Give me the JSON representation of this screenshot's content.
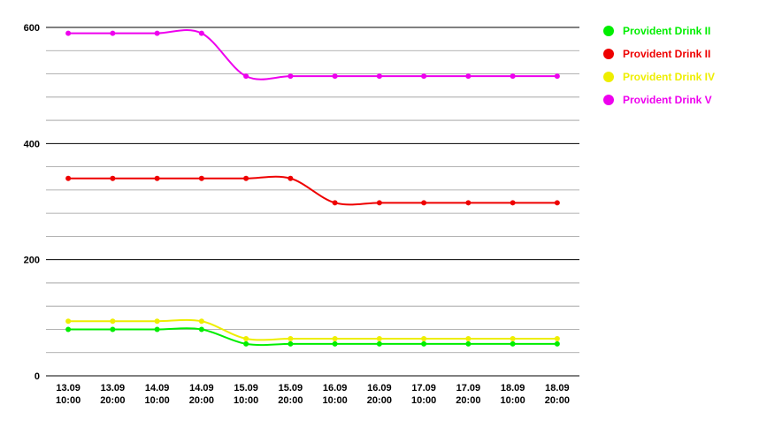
{
  "chart_data": {
    "type": "line",
    "categories": [
      [
        "13.09",
        "10:00"
      ],
      [
        "13.09",
        "20:00"
      ],
      [
        "14.09",
        "10:00"
      ],
      [
        "14.09",
        "20:00"
      ],
      [
        "15.09",
        "10:00"
      ],
      [
        "15.09",
        "20:00"
      ],
      [
        "16.09",
        "10:00"
      ],
      [
        "16.09",
        "20:00"
      ],
      [
        "17.09",
        "10:00"
      ],
      [
        "17.09",
        "20:00"
      ],
      [
        "18.09",
        "10:00"
      ],
      [
        "18.09",
        "20:00"
      ]
    ],
    "ylim": [
      0,
      600
    ],
    "yticks": [
      "0",
      "200",
      "400",
      "600"
    ],
    "grid": true,
    "legend_position": "right",
    "series": [
      {
        "name": "Provident Drink II",
        "color": "#00ee00",
        "values": [
          80,
          80,
          80,
          80,
          55,
          55,
          55,
          55,
          55,
          55,
          55,
          55
        ]
      },
      {
        "name": "Provident Drink II",
        "color": "#ee0000",
        "values": [
          340,
          340,
          340,
          340,
          340,
          340,
          298,
          298,
          298,
          298,
          298,
          298
        ]
      },
      {
        "name": "Provident Drink IV",
        "color": "#eeee00",
        "values": [
          94,
          94,
          94,
          94,
          64,
          64,
          64,
          64,
          64,
          64,
          64,
          64
        ]
      },
      {
        "name": "Provident Drink V",
        "color": "#ee00ee",
        "values": [
          590,
          590,
          590,
          590,
          516,
          516,
          516,
          516,
          516,
          516,
          516,
          516
        ]
      }
    ]
  }
}
